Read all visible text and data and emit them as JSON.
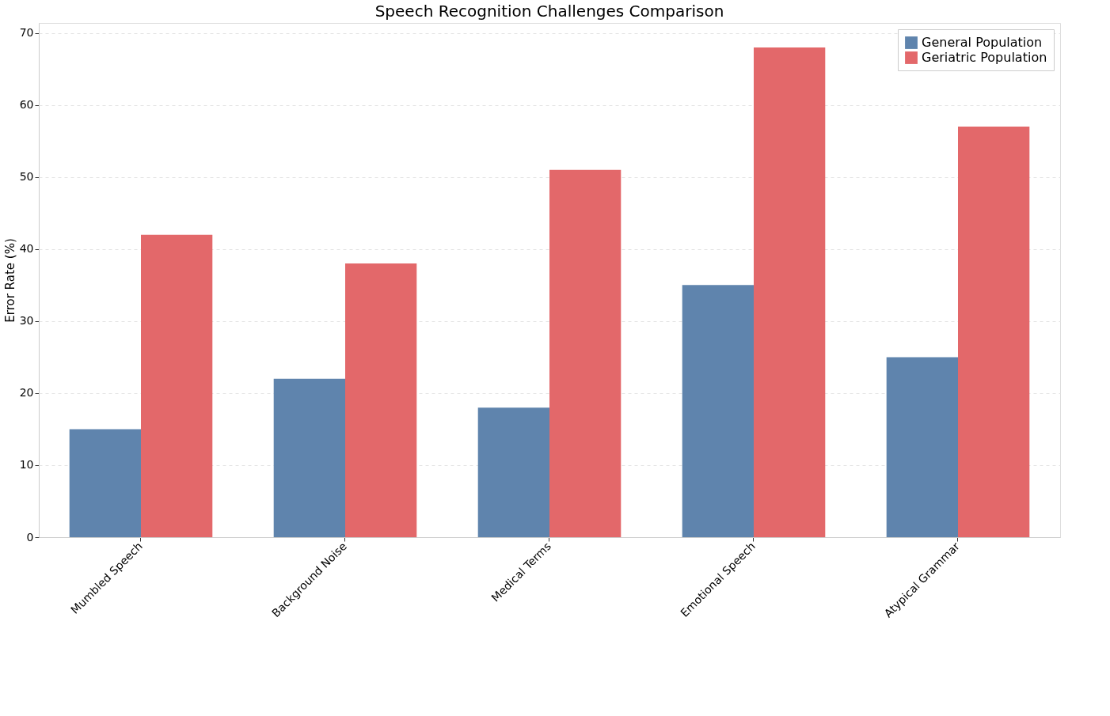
{
  "chart_data": {
    "type": "bar",
    "title": "Speech Recognition Challenges Comparison",
    "ylabel": "Error Rate (%)",
    "categories": [
      "Mumbled Speech",
      "Background Noise",
      "Medical Terms",
      "Emotional Speech",
      "Atypical Grammar"
    ],
    "series": [
      {
        "name": "General Population",
        "color": "#5f84ad",
        "values": [
          15,
          22,
          18,
          35,
          25
        ]
      },
      {
        "name": "Geriatric Population",
        "color": "#e3686a",
        "values": [
          42,
          38,
          51,
          68,
          57
        ]
      }
    ],
    "ylim": [
      0,
      71.4
    ],
    "yticks": [
      0,
      10,
      20,
      30,
      40,
      50,
      60,
      70
    ],
    "grid": "y",
    "legend": "top right"
  }
}
